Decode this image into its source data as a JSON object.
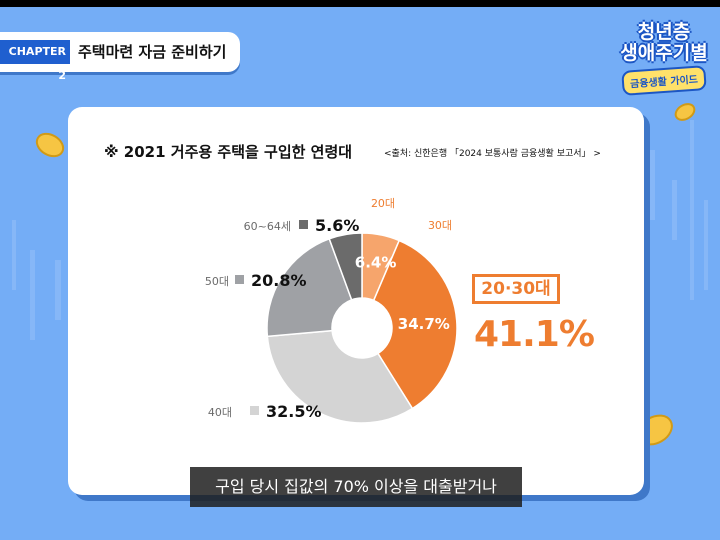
{
  "chapter": {
    "tag": "CHAPTER 2",
    "title": "주택마련 자금 준비하기"
  },
  "logo": {
    "line1": "청년층",
    "line2": "생애주기별",
    "sub": "금융생활 가이드"
  },
  "card": {
    "title": "※ 2021 거주용 주택을 구입한 연령대",
    "source": "<출처: 신한은행 「2024 보통사람 금융생활 보고서」 >"
  },
  "highlight": {
    "label": "20·30대",
    "value": "41.1%"
  },
  "caption": "구입 당시 집값의 70% 이상을 대출받거나",
  "colors": {
    "c20": "#f6a56c",
    "c30": "#ee7d30",
    "c40": "#d4d4d4",
    "c50": "#9fa1a5",
    "c60": "#6b6b6b",
    "background": "#74adf6",
    "accent": "#ee7d30"
  },
  "chart_data": {
    "type": "pie",
    "donut": true,
    "categories": [
      "20대",
      "30대",
      "40대",
      "50대",
      "60~64세"
    ],
    "values": [
      6.4,
      34.7,
      32.5,
      20.8,
      5.6
    ],
    "value_labels": [
      "6.4%",
      "34.7%",
      "32.5%",
      "20.8%",
      "5.6%"
    ],
    "title": "※ 2021 거주용 주택을 구입한 연령대"
  }
}
